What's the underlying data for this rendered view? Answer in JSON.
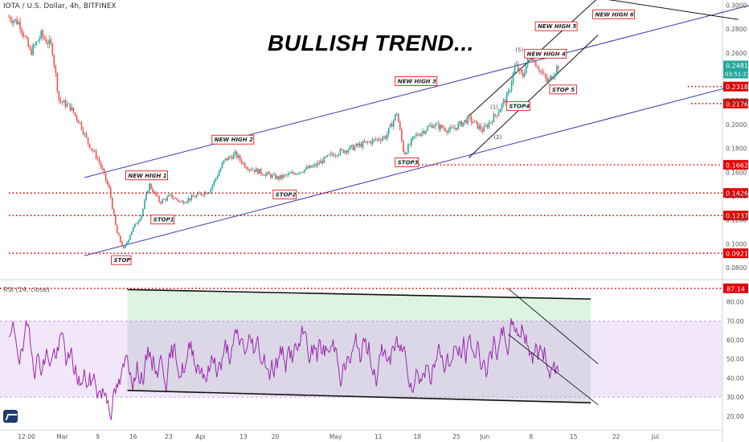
{
  "header": {
    "symbol_line": "IOTA / U.S. Dollar, 4h, BITFINEX",
    "rsi_label": "RSI (14, close)"
  },
  "annotation_title": "BULLISH TREND...",
  "colors": {
    "up": "#26a69a",
    "down": "#ef5350",
    "channel": "#3a3aa8",
    "stop_line": "#e00000",
    "rsi_line": "#9c27b0",
    "rsi_band": "#e9d5f5",
    "rsi_green_zone": "#d4f1d8",
    "label_border": "#e00000"
  },
  "chart_data": {
    "type": "candlestick",
    "timeframe": "4h",
    "price_axis": {
      "ticks": [
        "0.3000",
        "0.2800",
        "0.2600",
        "0.2200",
        "0.2000",
        "0.1800",
        "0.1600",
        "0.1400",
        "0.1200",
        "0.1000",
        "0.0800"
      ],
      "range": [
        0.072,
        0.303
      ]
    },
    "time_axis": {
      "ticks": [
        "12:00",
        "Mar",
        "9",
        "16",
        "23",
        "Apr",
        "13",
        "20",
        "May",
        "11",
        "18",
        "25",
        "Jun",
        "8",
        "15",
        "22",
        "Jul"
      ]
    },
    "current_price": {
      "value": "0.2481",
      "countdown": "03:51:23"
    },
    "price_levels": [
      {
        "label": "0.2318",
        "price": 0.2318,
        "x_from": 18.9
      },
      {
        "label": "0.2176",
        "price": 0.2176,
        "x_from": 19.0
      },
      {
        "label": "0.1662",
        "price": 0.1662,
        "x_from": 10.8
      },
      {
        "label": "0.1426",
        "price": 0.1426,
        "x_from": 0
      },
      {
        "label": "0.1237",
        "price": 0.1237,
        "x_from": 0
      },
      {
        "label": "0.0921",
        "price": 0.0921,
        "x_from": 0
      }
    ],
    "channel_upper": [
      [
        2.1,
        0.1555
      ],
      [
        22.3,
        0.313
      ]
    ],
    "channel_lower": [
      [
        2.1,
        0.09
      ],
      [
        22.3,
        0.249
      ]
    ],
    "short_channel_upper": [
      [
        12.8,
        0.207
      ],
      [
        16.4,
        0.306
      ]
    ],
    "short_channel_lower": [
      [
        12.8,
        0.172
      ],
      [
        16.4,
        0.275
      ]
    ],
    "extra_line": [
      [
        16.4,
        0.306
      ],
      [
        20.3,
        0.288
      ]
    ],
    "annotations": [
      {
        "text": "NEW HIGH 1",
        "x": 3.3,
        "price": 0.155
      },
      {
        "text": "NEW HIGH 2",
        "x": 5.7,
        "price": 0.185
      },
      {
        "text": "NEW HIGH 3",
        "x": 10.8,
        "price": 0.234
      },
      {
        "text": "NEW HIGH 4",
        "x": 14.4,
        "price": 0.257
      },
      {
        "text": "NEW HIGH 5",
        "x": 14.7,
        "price": 0.28
      },
      {
        "text": "NEW HIGH 6",
        "x": 16.3,
        "price": 0.29
      },
      {
        "text": "STOP",
        "x": 2.9,
        "price": 0.084
      },
      {
        "text": "STOP1",
        "x": 4.0,
        "price": 0.118
      },
      {
        "text": "STOP2",
        "x": 7.4,
        "price": 0.139
      },
      {
        "text": "STOP3",
        "x": 10.8,
        "price": 0.166
      },
      {
        "text": "STOP4",
        "x": 13.9,
        "price": 0.213
      },
      {
        "text": "STOP 5",
        "x": 15.1,
        "price": 0.227
      }
    ],
    "wave_labels": [
      {
        "text": "(1)",
        "x": 13.4,
        "price": 0.213
      },
      {
        "text": "(2)",
        "x": 13.5,
        "price": 0.188
      },
      {
        "text": "(5)",
        "x": 14.1,
        "price": 0.261
      }
    ],
    "ohlc_path": [
      [
        0,
        0.29
      ],
      [
        0.3,
        0.285
      ],
      [
        0.6,
        0.26
      ],
      [
        0.9,
        0.275
      ],
      [
        1.2,
        0.265
      ],
      [
        1.4,
        0.22
      ],
      [
        1.7,
        0.215
      ],
      [
        2.0,
        0.2
      ],
      [
        2.2,
        0.185
      ],
      [
        2.5,
        0.17
      ],
      [
        2.8,
        0.145
      ],
      [
        3.0,
        0.11
      ],
      [
        3.2,
        0.095
      ],
      [
        3.4,
        0.11
      ],
      [
        3.7,
        0.125
      ],
      [
        3.9,
        0.15
      ],
      [
        4.2,
        0.135
      ],
      [
        4.5,
        0.14
      ],
      [
        4.8,
        0.135
      ],
      [
        5.2,
        0.14
      ],
      [
        5.6,
        0.145
      ],
      [
        6.0,
        0.17
      ],
      [
        6.3,
        0.175
      ],
      [
        6.6,
        0.165
      ],
      [
        7.0,
        0.16
      ],
      [
        7.5,
        0.155
      ],
      [
        8.0,
        0.16
      ],
      [
        8.5,
        0.165
      ],
      [
        9.0,
        0.175
      ],
      [
        9.5,
        0.18
      ],
      [
        10.0,
        0.185
      ],
      [
        10.5,
        0.19
      ],
      [
        10.8,
        0.21
      ],
      [
        11.0,
        0.175
      ],
      [
        11.3,
        0.19
      ],
      [
        11.8,
        0.2
      ],
      [
        12.3,
        0.195
      ],
      [
        12.8,
        0.205
      ],
      [
        13.2,
        0.195
      ],
      [
        13.6,
        0.21
      ],
      [
        13.9,
        0.225
      ],
      [
        14.1,
        0.25
      ],
      [
        14.3,
        0.24
      ],
      [
        14.5,
        0.26
      ],
      [
        14.8,
        0.245
      ],
      [
        15.0,
        0.235
      ],
      [
        15.3,
        0.25
      ]
    ],
    "rsi": {
      "range": [
        14,
        90
      ],
      "ticks": [
        "80.00",
        "70.00",
        "60.00",
        "50.00",
        "40.00",
        "30.00",
        "20.00"
      ],
      "band": [
        30,
        70
      ],
      "marker": {
        "label": "87.14",
        "value": 87.14
      },
      "upper_trend": [
        [
          3.3,
          86.5
        ],
        [
          16.2,
          81.5
        ]
      ],
      "lower_trend": [
        [
          3.3,
          33.5
        ],
        [
          16.2,
          27.0
        ]
      ],
      "down_channel_upper": [
        [
          13.9,
          87.0
        ],
        [
          16.4,
          47.5
        ]
      ],
      "down_channel_lower": [
        [
          13.9,
          63.0
        ],
        [
          16.4,
          26.0
        ]
      ]
    }
  }
}
